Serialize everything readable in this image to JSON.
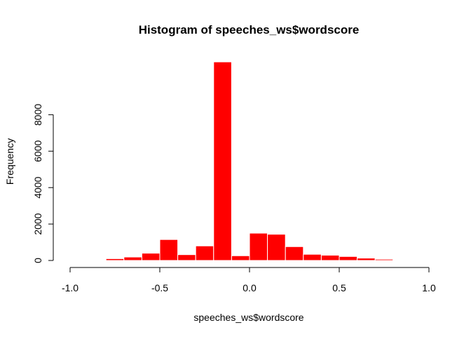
{
  "chart_data": {
    "type": "bar",
    "title": "Histogram of speeches_ws$wordscore",
    "xlabel": "speeches_ws$wordscore",
    "ylabel": "Frequency",
    "bar_color": "#ff0000",
    "bar_border_color": "#ffffff",
    "xlim": [
      -1.0,
      1.0
    ],
    "ylim": [
      0,
      10000
    ],
    "x_ticks": [
      -1.0,
      -0.5,
      0.0,
      0.5,
      1.0
    ],
    "x_tick_labels": [
      "-1.0",
      "-0.5",
      "0.0",
      "0.5",
      "1.0"
    ],
    "y_ticks": [
      0,
      2000,
      4000,
      6000,
      8000
    ],
    "y_tick_labels": [
      "0",
      "2000",
      "4000",
      "6000",
      "8000"
    ],
    "bin_width": 0.1,
    "bins": [
      {
        "x0": -0.9,
        "x1": -0.8,
        "count": 20
      },
      {
        "x0": -0.8,
        "x1": -0.7,
        "count": 100
      },
      {
        "x0": -0.7,
        "x1": -0.6,
        "count": 190
      },
      {
        "x0": -0.6,
        "x1": -0.5,
        "count": 400
      },
      {
        "x0": -0.5,
        "x1": -0.4,
        "count": 1150
      },
      {
        "x0": -0.4,
        "x1": -0.3,
        "count": 320
      },
      {
        "x0": -0.3,
        "x1": -0.2,
        "count": 800
      },
      {
        "x0": -0.2,
        "x1": -0.1,
        "count": 10900
      },
      {
        "x0": -0.1,
        "x1": 0.0,
        "count": 260
      },
      {
        "x0": 0.0,
        "x1": 0.1,
        "count": 1500
      },
      {
        "x0": 0.1,
        "x1": 0.2,
        "count": 1440
      },
      {
        "x0": 0.2,
        "x1": 0.3,
        "count": 760
      },
      {
        "x0": 0.3,
        "x1": 0.4,
        "count": 340
      },
      {
        "x0": 0.4,
        "x1": 0.5,
        "count": 290
      },
      {
        "x0": 0.5,
        "x1": 0.6,
        "count": 220
      },
      {
        "x0": 0.6,
        "x1": 0.7,
        "count": 130
      },
      {
        "x0": 0.7,
        "x1": 0.8,
        "count": 70
      },
      {
        "x0": 0.8,
        "x1": 0.9,
        "count": 15
      }
    ]
  }
}
